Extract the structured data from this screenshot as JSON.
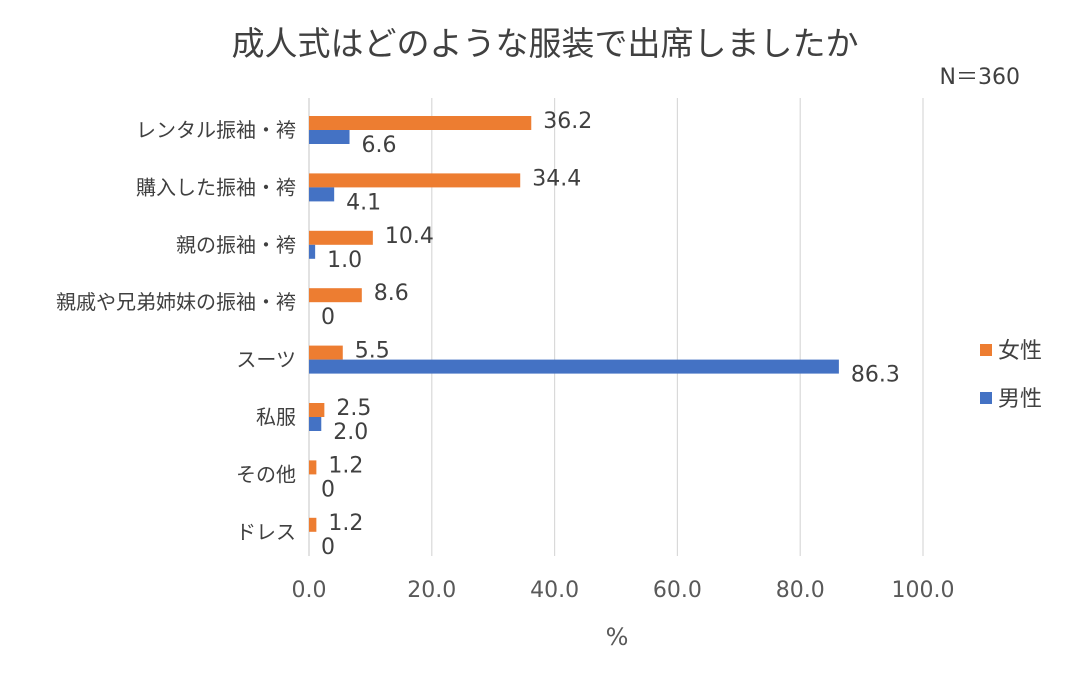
{
  "chart_data": {
    "type": "bar",
    "orientation": "horizontal",
    "title": "成人式はどのような服装で出席しましたか",
    "note": "N＝360",
    "xlabel": "%",
    "ylabel": "",
    "xlim": [
      0,
      100
    ],
    "x_ticks": [
      "0.0",
      "20.0",
      "40.0",
      "60.0",
      "80.0",
      "100.0"
    ],
    "grid": true,
    "legend_position": "right",
    "categories": [
      "レンタル振袖・袴",
      "購入した振袖・袴",
      "親の振袖・袴",
      "親戚や兄弟姉妹の振袖・袴",
      "スーツ",
      "私服",
      "その他",
      "ドレス"
    ],
    "series": [
      {
        "name": "女性",
        "color": "#ED7D31",
        "values": [
          36.2,
          34.4,
          10.4,
          8.6,
          5.5,
          2.5,
          1.2,
          1.2
        ],
        "labels": [
          "36.2",
          "34.4",
          "10.4",
          "8.6",
          "5.5",
          "2.5",
          "1.2",
          "1.2"
        ]
      },
      {
        "name": "男性",
        "color": "#4472C4",
        "values": [
          6.6,
          4.1,
          1.0,
          0,
          86.3,
          2.0,
          0,
          0
        ],
        "labels": [
          "6.6",
          "4.1",
          "1.0",
          "0",
          "86.3",
          "2.0",
          "0",
          "0"
        ]
      }
    ],
    "gridline_color": "#D9D9D9"
  }
}
